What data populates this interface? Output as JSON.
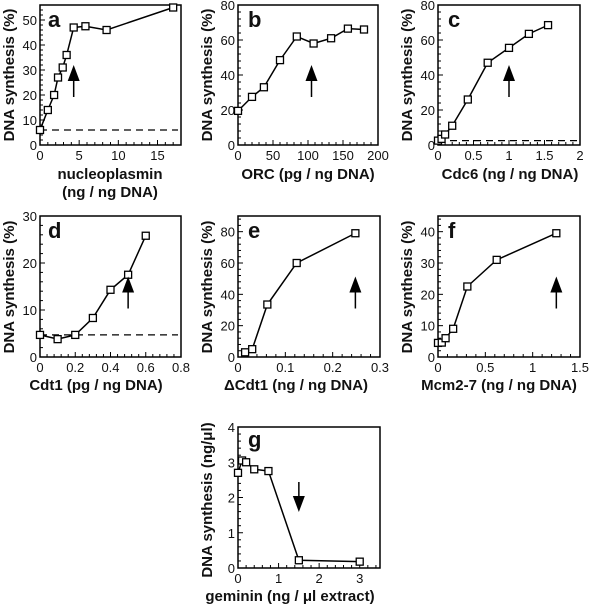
{
  "chart_data": [
    {
      "id": "a",
      "type": "line",
      "panel_label": "a",
      "title": "",
      "xlabel": "nucleoplasmin",
      "xlabel_line2": "(ng / ng DNA)",
      "ylabel": "DNA synthesis (%)",
      "xlim": [
        0,
        18
      ],
      "ylim": [
        0,
        56
      ],
      "xticks": [
        0,
        5,
        10,
        15
      ],
      "yticks": [
        0,
        10,
        20,
        30,
        40,
        50
      ],
      "x": [
        0,
        1,
        1.8,
        2.3,
        2.9,
        3.4,
        4.3,
        5.8,
        8.5,
        17
      ],
      "y": [
        6,
        14,
        20,
        27,
        31,
        36,
        47,
        47.5,
        46,
        55
      ],
      "baseline": 6,
      "arrow": {
        "x": 4.3,
        "direction": "up"
      },
      "grid": false,
      "marker": "open-square"
    },
    {
      "id": "b",
      "type": "line",
      "panel_label": "b",
      "title": "",
      "xlabel": "ORC (pg / ng DNA)",
      "ylabel": "DNA synthesis (%)",
      "xlim": [
        0,
        200
      ],
      "ylim": [
        0,
        80
      ],
      "xticks": [
        0,
        50,
        100,
        150,
        200
      ],
      "yticks": [
        0,
        20,
        40,
        60,
        80
      ],
      "x": [
        0,
        20,
        37,
        60,
        84,
        108,
        133,
        157,
        180
      ],
      "y": [
        19.5,
        27.5,
        33,
        48.5,
        62,
        58,
        61,
        66.5,
        66
      ],
      "baseline": null,
      "arrow": {
        "x": 105,
        "direction": "up"
      },
      "grid": false,
      "marker": "open-square"
    },
    {
      "id": "c",
      "type": "line",
      "panel_label": "c",
      "title": "",
      "xlabel": "Cdc6 (ng / ng DNA)",
      "ylabel": "DNA synthesis (%)",
      "xlim": [
        0,
        2
      ],
      "ylim": [
        0,
        80
      ],
      "xticks": [
        0,
        0.5,
        1,
        1.5,
        2
      ],
      "yticks": [
        0,
        20,
        40,
        60,
        80
      ],
      "x": [
        0,
        0.05,
        0.1,
        0.2,
        0.42,
        0.7,
        1.0,
        1.28,
        1.55
      ],
      "y": [
        2.5,
        3.5,
        6,
        11,
        26,
        47,
        55.5,
        63.5,
        68.5
      ],
      "baseline": 2.5,
      "arrow": {
        "x": 1.0,
        "direction": "up"
      },
      "grid": false,
      "marker": "open-square"
    },
    {
      "id": "d",
      "type": "line",
      "panel_label": "d",
      "title": "",
      "xlabel": "Cdt1 (pg / ng DNA)",
      "ylabel": "DNA synthesis (%)",
      "xlim": [
        0,
        0.8
      ],
      "ylim": [
        0,
        30
      ],
      "xticks": [
        0,
        0.2,
        0.4,
        0.6,
        0.8
      ],
      "yticks": [
        0,
        10,
        20,
        30
      ],
      "x": [
        0,
        0.1,
        0.2,
        0.3,
        0.4,
        0.5,
        0.6
      ],
      "y": [
        4.7,
        3.8,
        4.7,
        8.3,
        14.3,
        17.5,
        25.8
      ],
      "baseline": 4.7,
      "arrow": {
        "x": 0.5,
        "direction": "up"
      },
      "grid": false,
      "marker": "open-square"
    },
    {
      "id": "e",
      "type": "line",
      "panel_label": "e",
      "title": "",
      "xlabel": "ΔCdt1 (ng / ng DNA)",
      "ylabel": "DNA synthesis (%)",
      "xlim": [
        0,
        0.3
      ],
      "ylim": [
        0,
        90
      ],
      "xticks": [
        0,
        0.1,
        0.2,
        0.3
      ],
      "yticks": [
        0,
        20,
        40,
        60,
        80
      ],
      "x": [
        0.015,
        0.03,
        0.062,
        0.124,
        0.248
      ],
      "y": [
        3,
        5,
        33.5,
        60,
        79
      ],
      "baseline": null,
      "arrow": {
        "x": 0.248,
        "direction": "up"
      },
      "grid": false,
      "marker": "open-square"
    },
    {
      "id": "f",
      "type": "line",
      "panel_label": "f",
      "title": "",
      "xlabel": "Mcm2-7 (ng / ng DNA)",
      "ylabel": "DNA synthesis (%)",
      "xlim": [
        0,
        1.5
      ],
      "ylim": [
        0,
        45
      ],
      "xticks": [
        0,
        0.5,
        1,
        1.5
      ],
      "yticks": [
        0,
        10,
        20,
        30,
        40
      ],
      "x": [
        0,
        0.04,
        0.08,
        0.16,
        0.31,
        0.62,
        1.25
      ],
      "y": [
        4.5,
        4.6,
        6,
        9,
        22.5,
        31,
        39.5
      ],
      "baseline": null,
      "arrow": {
        "x": 1.25,
        "direction": "up"
      },
      "grid": false,
      "marker": "open-square"
    },
    {
      "id": "g",
      "type": "line",
      "panel_label": "g",
      "title": "",
      "xlabel": "geminin (ng / μl extract)",
      "ylabel": "DNA synthesis (ng/μl)",
      "xlim": [
        0,
        3.5
      ],
      "ylim": [
        0,
        4
      ],
      "xticks": [
        0,
        1,
        2,
        3
      ],
      "yticks": [
        0,
        1,
        2,
        3,
        4
      ],
      "x": [
        0,
        0.1,
        0.2,
        0.4,
        0.75,
        1.5,
        3
      ],
      "y": [
        2.7,
        3.05,
        3.0,
        2.8,
        2.75,
        0.22,
        0.18
      ],
      "baseline": null,
      "arrow": {
        "x": 1.5,
        "direction": "down"
      },
      "grid": false,
      "marker": "open-square"
    }
  ]
}
